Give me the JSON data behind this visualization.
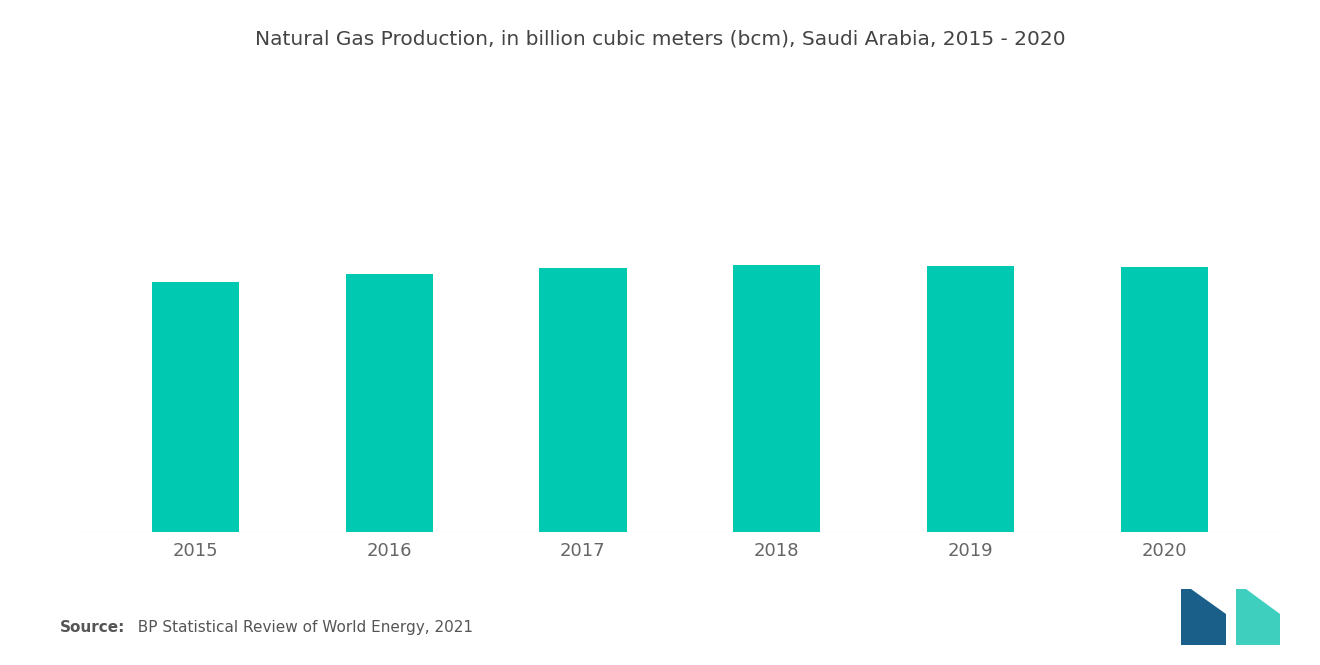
{
  "title": "Natural Gas Production, in billion cubic meters (bcm), Saudi Arabia, 2015 - 2020",
  "categories": [
    "2015",
    "2016",
    "2017",
    "2018",
    "2019",
    "2020"
  ],
  "values": [
    106,
    109.5,
    112,
    113.5,
    112.8,
    112.4
  ],
  "bar_color": "#00C9B1",
  "background_color": "#ffffff",
  "ylim": [
    0,
    175
  ],
  "title_fontsize": 14.5,
  "tick_fontsize": 13,
  "source_bold": "Source:",
  "source_normal": "  BP Statistical Review of World Energy, 2021",
  "bar_width": 0.45
}
